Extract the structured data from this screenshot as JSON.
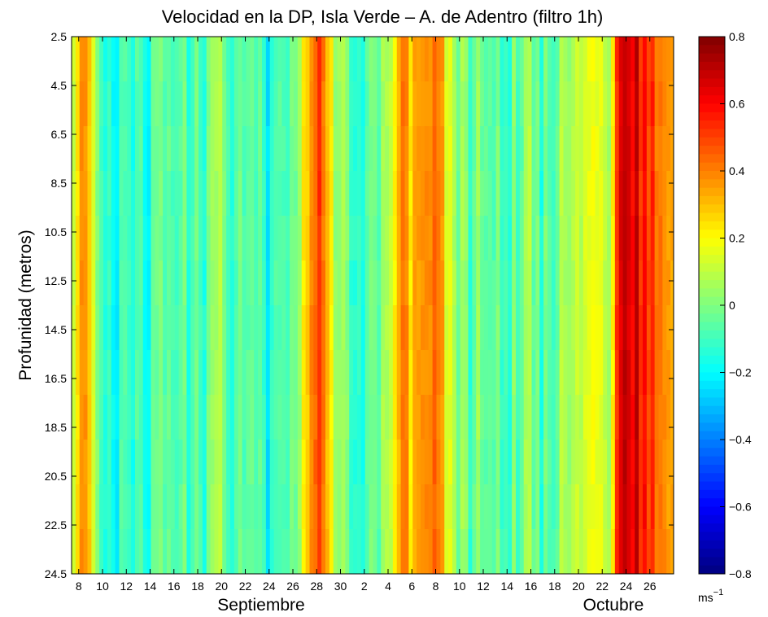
{
  "chart_data": {
    "type": "heatmap",
    "title": "Velocidad en la DP, Isla Verde – A. de Adentro (filtro 1h)",
    "ylabel": "Profunidad (metros)",
    "y_ticks": [
      "2.5",
      "4.5",
      "6.5",
      "8.5",
      "10.5",
      "12.5",
      "14.5",
      "16.5",
      "18.5",
      "20.5",
      "22.5",
      "24.5"
    ],
    "ylim": [
      2.5,
      24.5
    ],
    "y_reversed": true,
    "x_ticks": [
      "8",
      "10",
      "12",
      "14",
      "16",
      "18",
      "20",
      "22",
      "24",
      "26",
      "28",
      "30",
      "2",
      "4",
      "6",
      "8",
      "10",
      "12",
      "14",
      "16",
      "18",
      "20",
      "22",
      "24",
      "26"
    ],
    "x_month_labels": [
      "Septiembre",
      "Octubre"
    ],
    "colorbar": {
      "ticks": [
        "0.8",
        "0.6",
        "0.4",
        "0.2",
        "0",
        "−0.2",
        "−0.4",
        "−0.6",
        "−0.8"
      ],
      "range": [
        -0.8,
        0.8
      ],
      "unit_base": "ms",
      "unit_exp": "−1",
      "colormap": "jet"
    },
    "depths": [
      2.5,
      4.5,
      6.5,
      8.5,
      10.5,
      12.5,
      14.5,
      16.5,
      18.5,
      20.5,
      22.5,
      24.5
    ],
    "time_day_offset_start": -0.6,
    "time_day_offset_end": 50.0,
    "velocity_profile": [
      {
        "day": -0.6,
        "v": 0.15
      },
      {
        "day": 0.0,
        "v": 0.32
      },
      {
        "day": 0.5,
        "v": 0.38
      },
      {
        "day": 1.0,
        "v": 0.22
      },
      {
        "day": 1.5,
        "v": 0.05
      },
      {
        "day": 2.0,
        "v": -0.05
      },
      {
        "day": 3.0,
        "v": -0.15
      },
      {
        "day": 4.0,
        "v": -0.14
      },
      {
        "day": 5.0,
        "v": -0.1
      },
      {
        "day": 6.0,
        "v": -0.13
      },
      {
        "day": 7.0,
        "v": -0.08
      },
      {
        "day": 8.0,
        "v": -0.12
      },
      {
        "day": 9.0,
        "v": -0.06
      },
      {
        "day": 10.0,
        "v": -0.1
      },
      {
        "day": 11.0,
        "v": -0.05
      },
      {
        "day": 12.0,
        "v": 0.05
      },
      {
        "day": 13.0,
        "v": -0.08
      },
      {
        "day": 14.0,
        "v": -0.12
      },
      {
        "day": 15.0,
        "v": -0.1
      },
      {
        "day": 16.0,
        "v": -0.18
      },
      {
        "day": 17.0,
        "v": -0.12
      },
      {
        "day": 18.0,
        "v": -0.05
      },
      {
        "day": 18.8,
        "v": 0.1
      },
      {
        "day": 19.5,
        "v": 0.45
      },
      {
        "day": 20.2,
        "v": 0.5
      },
      {
        "day": 20.8,
        "v": 0.35
      },
      {
        "day": 21.5,
        "v": 0.1
      },
      {
        "day": 22.0,
        "v": 0.05
      },
      {
        "day": 23.0,
        "v": -0.05
      },
      {
        "day": 24.0,
        "v": -0.1
      },
      {
        "day": 25.0,
        "v": -0.05
      },
      {
        "day": 26.0,
        "v": 0.1
      },
      {
        "day": 27.0,
        "v": 0.3
      },
      {
        "day": 27.5,
        "v": 0.4
      },
      {
        "day": 28.0,
        "v": 0.25
      },
      {
        "day": 28.5,
        "v": 0.35
      },
      {
        "day": 29.5,
        "v": 0.4
      },
      {
        "day": 30.5,
        "v": 0.35
      },
      {
        "day": 31.0,
        "v": 0.2
      },
      {
        "day": 32.0,
        "v": 0.0
      },
      {
        "day": 33.0,
        "v": -0.05
      },
      {
        "day": 34.0,
        "v": 0.02
      },
      {
        "day": 35.0,
        "v": -0.05
      },
      {
        "day": 36.0,
        "v": -0.08
      },
      {
        "day": 37.0,
        "v": -0.02
      },
      {
        "day": 38.0,
        "v": 0.03
      },
      {
        "day": 39.0,
        "v": -0.1
      },
      {
        "day": 40.0,
        "v": -0.05
      },
      {
        "day": 41.0,
        "v": 0.05
      },
      {
        "day": 42.0,
        "v": 0.12
      },
      {
        "day": 43.0,
        "v": 0.15
      },
      {
        "day": 44.0,
        "v": 0.2
      },
      {
        "day": 44.8,
        "v": 0.1
      },
      {
        "day": 45.3,
        "v": 0.55
      },
      {
        "day": 46.0,
        "v": 0.68
      },
      {
        "day": 47.0,
        "v": 0.62
      },
      {
        "day": 48.0,
        "v": 0.52
      },
      {
        "day": 49.0,
        "v": 0.42
      },
      {
        "day": 50.0,
        "v": 0.3
      }
    ]
  }
}
